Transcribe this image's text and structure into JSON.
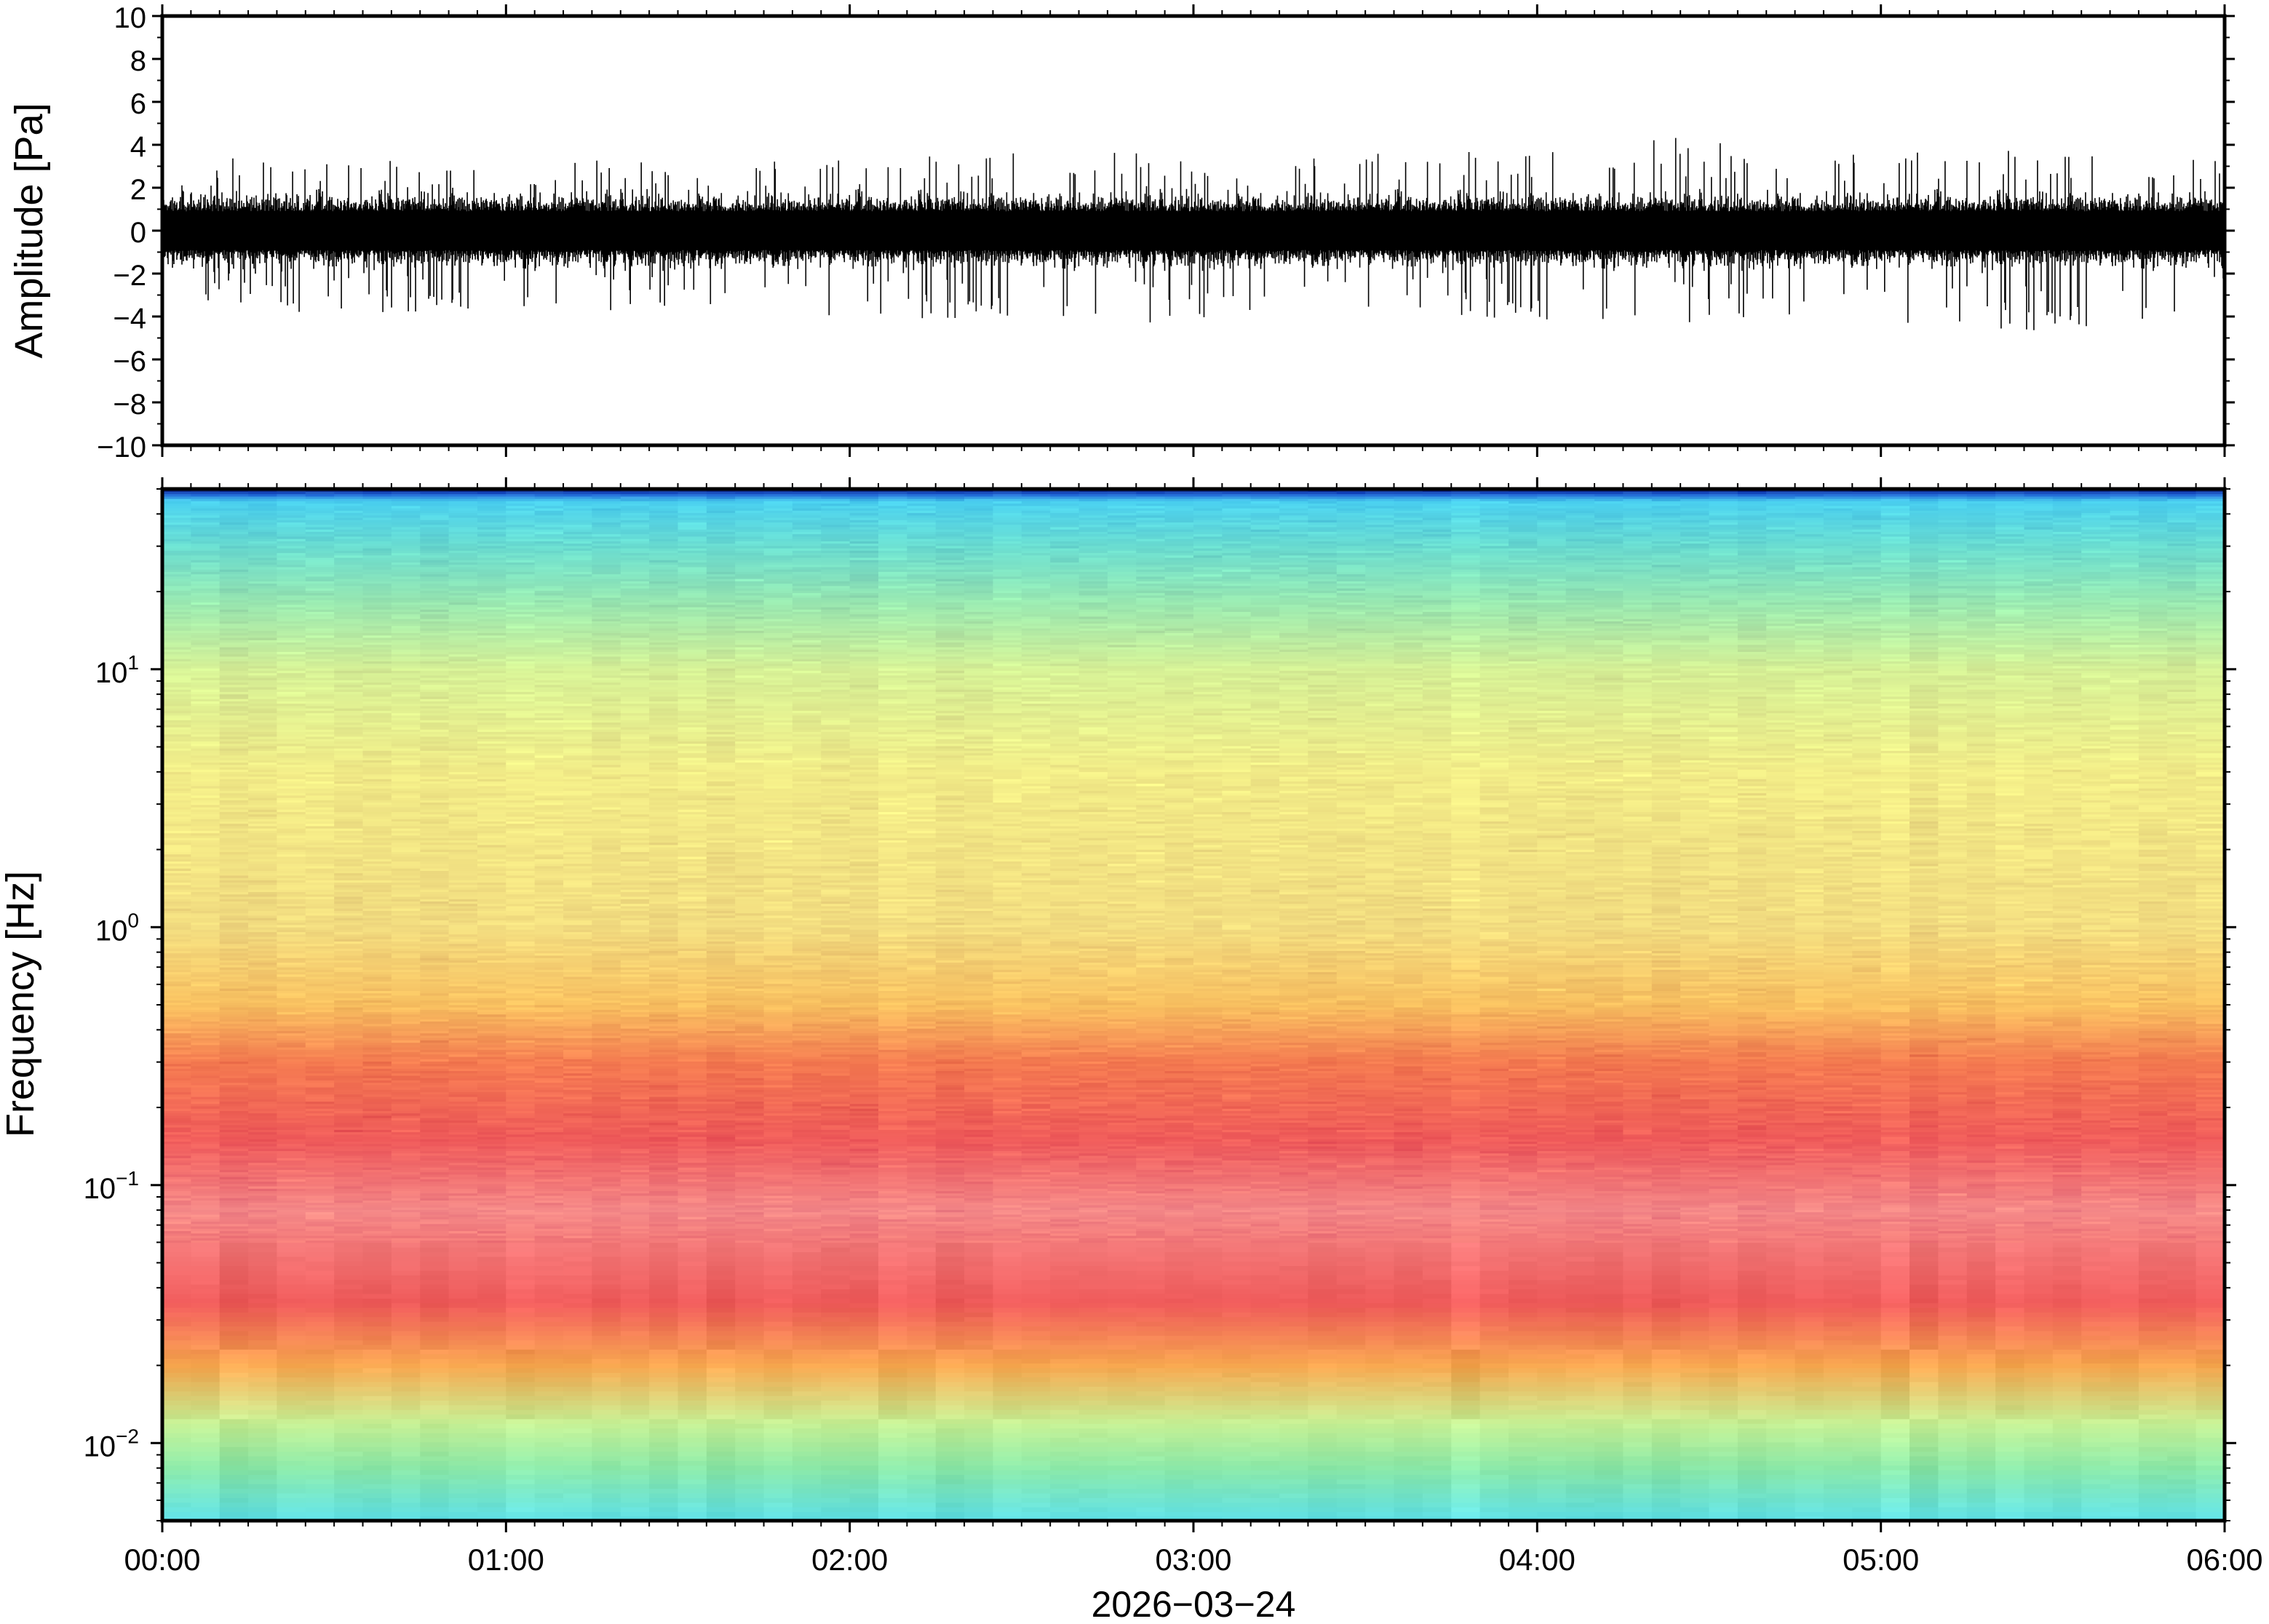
{
  "chart_data": [
    {
      "type": "line",
      "title": "",
      "xlabel": "",
      "ylabel": "Amplitude [Pa]",
      "xlim": [
        "00:00",
        "06:00"
      ],
      "ylim": [
        -10,
        10
      ],
      "yticks": [
        "10",
        "8",
        "6",
        "4",
        "2",
        "0",
        "−2",
        "−4",
        "−6",
        "−8",
        "−10"
      ],
      "yticks_values": [
        10,
        8,
        6,
        4,
        2,
        0,
        -2,
        -4,
        -6,
        -8,
        -10
      ],
      "grid": false,
      "color": "#000000",
      "series": [
        {
          "x": [
            "00:00",
            "00:30",
            "01:00",
            "01:30",
            "02:00",
            "02:30",
            "03:00",
            "03:30",
            "04:00",
            "04:30",
            "05:00",
            "05:30",
            "06:00"
          ],
          "envelope_max": [
            3.2,
            3.6,
            3.0,
            3.5,
            3.3,
            4.0,
            3.4,
            3.6,
            4.0,
            4.4,
            3.6,
            4.0,
            3.2
          ],
          "envelope_min": [
            -3.2,
            -4.0,
            -3.6,
            -3.8,
            -4.3,
            -4.0,
            -4.4,
            -3.8,
            -4.2,
            -4.3,
            -4.6,
            -4.7,
            -3.8
          ]
        }
      ]
    },
    {
      "type": "heatmap",
      "title": "",
      "xlabel": "2026−03−24",
      "ylabel": "Frequency [Hz]",
      "xticks": [
        "00:00",
        "01:00",
        "02:00",
        "03:00",
        "04:00",
        "05:00",
        "06:00"
      ],
      "yscale": "log",
      "ylim": [
        0.005,
        50
      ],
      "yticks": [
        {
          "value": 0.01,
          "base": "10",
          "exp": "−2"
        },
        {
          "value": 0.1,
          "base": "10",
          "exp": "−1"
        },
        {
          "value": 1,
          "base": "10",
          "exp": "0"
        },
        {
          "value": 10,
          "base": "10",
          "exp": "1"
        }
      ],
      "colormap": [
        "#0a1a6e",
        "#1f5fd6",
        "#3ec9f0",
        "#5ee0e8",
        "#8ae8a8",
        "#c6f094",
        "#f2ec88",
        "#f8d070",
        "#f8a850",
        "#f47a50",
        "#ef5a5a",
        "#f48888"
      ],
      "frequency_profile": [
        {
          "freq": 0.005,
          "color": "#5ee0e8"
        },
        {
          "freq": 0.008,
          "color": "#8ae8a8"
        },
        {
          "freq": 0.012,
          "color": "#c6f094"
        },
        {
          "freq": 0.02,
          "color": "#f8a850"
        },
        {
          "freq": 0.035,
          "color": "#ef5a5a"
        },
        {
          "freq": 0.08,
          "color": "#f48888"
        },
        {
          "freq": 0.15,
          "color": "#ef5a5a"
        },
        {
          "freq": 0.3,
          "color": "#f47a50"
        },
        {
          "freq": 0.5,
          "color": "#f8c060"
        },
        {
          "freq": 1,
          "color": "#f2dc80"
        },
        {
          "freq": 4,
          "color": "#f2ec88"
        },
        {
          "freq": 10,
          "color": "#d6f096"
        },
        {
          "freq": 18,
          "color": "#9ae8b0"
        },
        {
          "freq": 30,
          "color": "#6adcd0"
        },
        {
          "freq": 45,
          "color": "#4ad0f0"
        },
        {
          "freq": 48,
          "color": "#1f5fd6"
        },
        {
          "freq": 50,
          "color": "#0a1a6e"
        }
      ],
      "time_columns": 72
    }
  ]
}
